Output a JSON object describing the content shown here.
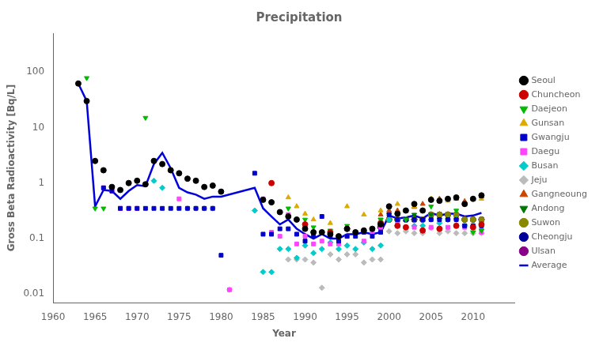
{
  "chart_data": {
    "type": "scatter",
    "title": "Precipitation",
    "x_label": "Year",
    "y_label": "Gross Beta Radioactivity [Bq/L]",
    "log": "y",
    "grid": false,
    "legend": "right",
    "xlim": [
      1960,
      2015
    ],
    "xticks": [
      1960,
      1965,
      1970,
      1975,
      1980,
      1985,
      1990,
      1995,
      2000,
      2005,
      2010
    ],
    "ylim": [
      0.007,
      500
    ],
    "yticks": [
      0.01,
      0.1,
      1,
      10,
      100
    ],
    "series": [
      {
        "name": "Seoul",
        "color": "#000000",
        "marker": "circle",
        "x": [
          1963,
          1964,
          1965,
          1966,
          1967,
          1968,
          1969,
          1970,
          1971,
          1972,
          1973,
          1974,
          1975,
          1976,
          1977,
          1978,
          1979,
          1980,
          1985,
          1986,
          1987,
          1988,
          1989,
          1990,
          1991,
          1992,
          1993,
          1994,
          1995,
          1996,
          1997,
          1998,
          1999,
          2000,
          2001,
          2002,
          2003,
          2004,
          2005,
          2006,
          2007,
          2008,
          2009,
          2010,
          2011
        ],
        "values": [
          62,
          30,
          2.5,
          1.7,
          0.85,
          0.75,
          1.0,
          1.1,
          0.95,
          2.5,
          2.2,
          1.7,
          1.5,
          1.2,
          1.1,
          0.85,
          0.9,
          0.7,
          0.5,
          0.45,
          0.3,
          0.25,
          0.22,
          0.15,
          0.13,
          0.13,
          0.12,
          0.11,
          0.15,
          0.13,
          0.14,
          0.15,
          0.18,
          0.38,
          0.28,
          0.32,
          0.42,
          0.32,
          0.5,
          0.48,
          0.52,
          0.55,
          0.42,
          0.52,
          0.6
        ]
      },
      {
        "name": "Chuncheon",
        "color": "#cc0000",
        "marker": "circle",
        "x": [
          1986,
          1990,
          1993,
          1995,
          1999,
          2001,
          2002,
          2004,
          2006,
          2008,
          2010,
          2011
        ],
        "values": [
          1.0,
          0.18,
          0.13,
          0.15,
          0.19,
          0.17,
          0.16,
          0.14,
          0.15,
          0.17,
          0.16,
          0.18
        ]
      },
      {
        "name": "Daejeon",
        "color": "#00bb00",
        "marker": "triangle_down",
        "x": [
          1964,
          1965,
          1966,
          1971,
          1988,
          1990,
          1991,
          1993,
          1995,
          1999,
          2002,
          2005,
          2008,
          2010,
          2011
        ],
        "values": [
          78,
          0.35,
          0.35,
          15,
          0.35,
          0.22,
          0.16,
          0.14,
          0.17,
          0.22,
          0.22,
          0.38,
          0.32,
          0.13,
          0.14
        ]
      },
      {
        "name": "Gunsan",
        "color": "#ddaa00",
        "marker": "triangle",
        "x": [
          1988,
          1989,
          1990,
          1991,
          1993,
          1995,
          1997,
          1999,
          2001,
          2003,
          2005,
          2007,
          2009,
          2011
        ],
        "values": [
          0.55,
          0.38,
          0.28,
          0.22,
          0.19,
          0.38,
          0.27,
          0.32,
          0.42,
          0.38,
          0.52,
          0.48,
          0.42,
          0.52
        ]
      },
      {
        "name": "Gwangju",
        "color": "#0000cc",
        "marker": "square",
        "x": [
          1966,
          1967,
          1968,
          1969,
          1970,
          1971,
          1972,
          1973,
          1974,
          1975,
          1976,
          1977,
          1978,
          1979,
          1980,
          1984,
          1985,
          1986,
          1987,
          1988,
          1989,
          1990,
          1991,
          1992,
          1993,
          1994,
          1995,
          1996,
          1997,
          1998,
          1999,
          2000,
          2001,
          2002,
          2003,
          2004,
          2005,
          2006,
          2007,
          2008,
          2009,
          2010,
          2011
        ],
        "values": [
          0.82,
          0.72,
          0.35,
          0.35,
          0.35,
          0.35,
          0.35,
          0.35,
          0.35,
          0.35,
          0.35,
          0.35,
          0.35,
          0.35,
          0.05,
          1.5,
          0.12,
          0.12,
          0.15,
          0.15,
          0.12,
          0.09,
          0.11,
          0.25,
          0.11,
          0.09,
          0.11,
          0.11,
          0.13,
          0.11,
          0.13,
          0.27,
          0.22,
          0.22,
          0.22,
          0.22,
          0.22,
          0.22,
          0.22,
          0.22,
          0.17,
          0.17,
          0.17
        ]
      },
      {
        "name": "Daegu",
        "color": "#ff44ff",
        "marker": "square",
        "x": [
          1966,
          1967,
          1968,
          1969,
          1970,
          1975,
          1981,
          1985,
          1986,
          1987,
          1988,
          1989,
          1990,
          1991,
          1992,
          1993,
          1994,
          1995,
          1997,
          1998,
          1999,
          2001,
          2003,
          2005,
          2007,
          2009,
          2011
        ],
        "values": [
          0.82,
          0.72,
          0.35,
          0.35,
          0.35,
          0.52,
          0.012,
          0.52,
          0.13,
          0.11,
          0.27,
          0.08,
          0.11,
          0.08,
          0.09,
          0.08,
          0.08,
          0.11,
          0.09,
          0.13,
          0.16,
          0.19,
          0.16,
          0.16,
          0.16,
          0.16,
          0.13
        ]
      },
      {
        "name": "Busan",
        "color": "#00cccc",
        "marker": "diamond",
        "x": [
          1972,
          1973,
          1984,
          1985,
          1986,
          1987,
          1988,
          1989,
          1990,
          1991,
          1992,
          1993,
          1994,
          1995,
          1996,
          1997,
          1998,
          1999,
          2000,
          2001,
          2002,
          2003,
          2004,
          2005,
          2006,
          2007,
          2008,
          2009,
          2010,
          2011
        ],
        "values": [
          1.1,
          0.82,
          0.32,
          0.025,
          0.025,
          0.065,
          0.065,
          0.045,
          0.075,
          0.055,
          0.065,
          0.085,
          0.065,
          0.075,
          0.065,
          0.085,
          0.065,
          0.075,
          0.22,
          0.17,
          0.22,
          0.17,
          0.17,
          0.22,
          0.19,
          0.22,
          0.22,
          0.17,
          0.17,
          0.17
        ]
      },
      {
        "name": "Jeju",
        "color": "#bbbbbb",
        "marker": "diamond",
        "x": [
          1976,
          1977,
          1978,
          1979,
          1981,
          1988,
          1989,
          1990,
          1991,
          1992,
          1993,
          1994,
          1995,
          1996,
          1997,
          1998,
          1999,
          2000,
          2001,
          2002,
          2003,
          2004,
          2005,
          2006,
          2007,
          2008,
          2009,
          2010,
          2011
        ],
        "values": [
          0.35,
          0.35,
          0.35,
          0.35,
          0.012,
          0.042,
          0.042,
          0.042,
          0.037,
          0.013,
          0.052,
          0.042,
          0.052,
          0.052,
          0.037,
          0.042,
          0.042,
          0.135,
          0.125,
          0.135,
          0.125,
          0.125,
          0.155,
          0.125,
          0.135,
          0.125,
          0.125,
          0.125,
          0.125
        ]
      },
      {
        "name": "Gangneoung",
        "color": "#cc4400",
        "marker": "triangle",
        "x": [
          1999,
          2000,
          2001,
          2002,
          2003,
          2004,
          2005,
          2006,
          2007,
          2008,
          2009,
          2010,
          2011
        ],
        "values": [
          0.27,
          0.32,
          0.32,
          0.32,
          0.37,
          0.42,
          0.52,
          0.52,
          0.52,
          0.52,
          0.47,
          0.52,
          0.57
        ]
      },
      {
        "name": "Andong",
        "color": "#007700",
        "marker": "triangle_down",
        "x": [
          1999,
          2000,
          2001,
          2002,
          2003,
          2004,
          2005,
          2006,
          2007,
          2008,
          2009,
          2010,
          2011
        ],
        "values": [
          0.22,
          0.27,
          0.22,
          0.22,
          0.27,
          0.22,
          0.27,
          0.22,
          0.22,
          0.22,
          0.17,
          0.13,
          0.14
        ]
      },
      {
        "name": "Suwon",
        "color": "#888800",
        "marker": "circle",
        "x": [
          1999,
          2000,
          2001,
          2002,
          2003,
          2004,
          2005,
          2006,
          2007,
          2008,
          2009,
          2010,
          2011
        ],
        "values": [
          0.19,
          0.22,
          0.22,
          0.22,
          0.22,
          0.22,
          0.27,
          0.27,
          0.27,
          0.27,
          0.22,
          0.22,
          0.22
        ]
      },
      {
        "name": "Cheongju",
        "color": "#000099",
        "marker": "circle",
        "x": [
          1999,
          2000,
          2001,
          2002,
          2003,
          2004,
          2005,
          2006,
          2007,
          2008,
          2009,
          2010,
          2011
        ],
        "values": [
          0.16,
          0.22,
          0.22,
          0.22,
          0.22,
          0.22,
          0.27,
          0.27,
          0.27,
          0.27,
          0.22,
          0.22,
          0.22
        ]
      },
      {
        "name": "Ulsan",
        "color": "#880088",
        "marker": "circle",
        "x": [
          1999,
          2000,
          2001,
          2002,
          2003,
          2004,
          2005,
          2006,
          2007,
          2008,
          2009,
          2010,
          2011
        ],
        "values": [
          0.16,
          0.22,
          0.22,
          0.22,
          0.22,
          0.22,
          0.27,
          0.27,
          0.27,
          0.27,
          0.22,
          0.22,
          0.22
        ]
      },
      {
        "name": "Average",
        "type": "line",
        "color": "#0000dd",
        "line_style": "solid",
        "x": [
          1963,
          1964,
          1965,
          1966,
          1967,
          1968,
          1969,
          1970,
          1971,
          1972,
          1973,
          1974,
          1975,
          1976,
          1977,
          1978,
          1979,
          1980,
          1984,
          1985,
          1986,
          1987,
          1988,
          1989,
          1990,
          1991,
          1992,
          1993,
          1994,
          1995,
          1996,
          1997,
          1998,
          1999,
          2000,
          2001,
          2002,
          2003,
          2004,
          2005,
          2006,
          2007,
          2008,
          2009,
          2010,
          2011
        ],
        "values": [
          62,
          30,
          0.38,
          0.75,
          0.72,
          0.52,
          0.72,
          0.92,
          0.88,
          2.2,
          3.5,
          1.85,
          0.82,
          0.68,
          0.62,
          0.52,
          0.57,
          0.57,
          0.82,
          0.35,
          0.25,
          0.18,
          0.22,
          0.15,
          0.12,
          0.1,
          0.12,
          0.1,
          0.1,
          0.12,
          0.12,
          0.13,
          0.12,
          0.13,
          0.26,
          0.23,
          0.24,
          0.26,
          0.23,
          0.29,
          0.26,
          0.28,
          0.28,
          0.25,
          0.26,
          0.29
        ]
      }
    ]
  }
}
